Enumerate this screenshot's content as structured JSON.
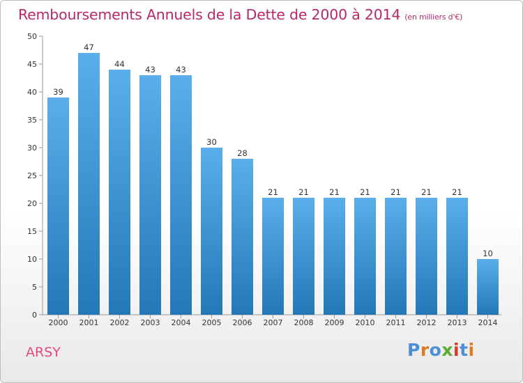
{
  "header": {
    "title": "Remboursements Annuels de la Dette de 2000 à 2014",
    "subtitle": "(en milliers d'€)"
  },
  "footer": {
    "commune": "ARSY",
    "logo_text": "Proxiti"
  },
  "colors": {
    "title": "#b5286a",
    "commune": "#e34b7c",
    "bar_top": "#5aaeea",
    "bar_bottom": "#2478b8",
    "logo_letters": [
      "#4a8fd8",
      "#e07a20",
      "#4a8fd8",
      "#5aab2f",
      "#d83a2a",
      "#4a8fd8",
      "#e07a20"
    ]
  },
  "chart_data": {
    "type": "bar",
    "title": "Remboursements Annuels de la Dette de 2000 à 2014",
    "subtitle": "(en milliers d'€)",
    "categories": [
      "2000",
      "2001",
      "2002",
      "2003",
      "2004",
      "2005",
      "2006",
      "2007",
      "2008",
      "2009",
      "2010",
      "2011",
      "2012",
      "2013",
      "2014"
    ],
    "values": [
      39,
      47,
      44,
      43,
      43,
      30,
      28,
      21,
      21,
      21,
      21,
      21,
      21,
      21,
      10
    ],
    "ylim": [
      0,
      50
    ],
    "yticks": [
      0,
      5,
      10,
      15,
      20,
      25,
      30,
      35,
      40,
      45,
      50
    ],
    "grid": false,
    "data_labels": true
  }
}
